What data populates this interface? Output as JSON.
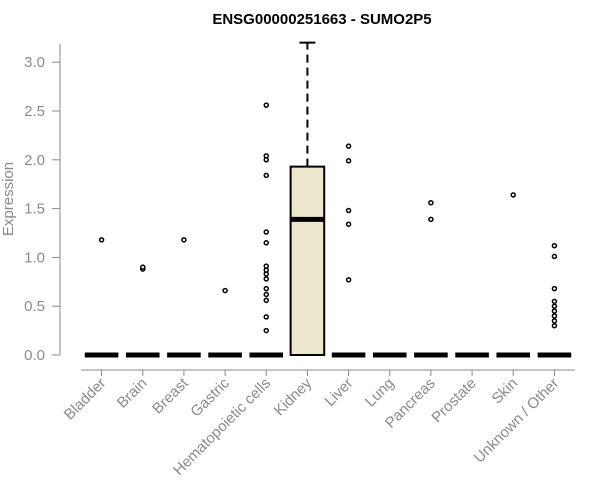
{
  "chart_data": {
    "type": "boxplot",
    "title": "ENSG00000251663 - SUMO2P5",
    "xlabel": "",
    "ylabel": "Expression",
    "ylim": [
      0,
      3.2
    ],
    "yticks": [
      0.0,
      0.5,
      1.0,
      1.5,
      2.0,
      2.5,
      3.0
    ],
    "ytick_labels": [
      "0.0",
      "0.5",
      "1.0",
      "1.5",
      "2.0",
      "2.5",
      "3.0"
    ],
    "categories": [
      "Bladder",
      "Brain",
      "Breast",
      "Gastric",
      "Hematopoietic cells",
      "Kidney",
      "Liver",
      "Lung",
      "Pancreas",
      "Prostate",
      "Skin",
      "Unknown / Other"
    ],
    "boxes": [
      {
        "category": "Bladder",
        "q1": 0,
        "median": 0,
        "q3": 0,
        "whisker_low": 0,
        "whisker_high": 0,
        "outliers": [
          1.18
        ]
      },
      {
        "category": "Brain",
        "q1": 0,
        "median": 0,
        "q3": 0,
        "whisker_low": 0,
        "whisker_high": 0,
        "outliers": [
          0.88,
          0.9
        ]
      },
      {
        "category": "Breast",
        "q1": 0,
        "median": 0,
        "q3": 0,
        "whisker_low": 0,
        "whisker_high": 0,
        "outliers": [
          1.18
        ]
      },
      {
        "category": "Gastric",
        "q1": 0,
        "median": 0,
        "q3": 0,
        "whisker_low": 0,
        "whisker_high": 0,
        "outliers": [
          0.66
        ]
      },
      {
        "category": "Hematopoietic cells",
        "q1": 0,
        "median": 0,
        "q3": 0,
        "whisker_low": 0,
        "whisker_high": 0,
        "outliers": [
          0.25,
          0.39,
          0.56,
          0.62,
          0.68,
          0.78,
          0.83,
          0.87,
          0.91,
          1.15,
          1.26,
          1.84,
          2.0,
          2.04,
          2.56
        ]
      },
      {
        "category": "Kidney",
        "q1": 0,
        "median": 1.39,
        "q3": 1.93,
        "whisker_low": 0,
        "whisker_high": 3.2,
        "outliers": []
      },
      {
        "category": "Liver",
        "q1": 0,
        "median": 0,
        "q3": 0,
        "whisker_low": 0,
        "whisker_high": 0,
        "outliers": [
          0.77,
          1.34,
          1.48,
          1.99,
          2.14
        ]
      },
      {
        "category": "Lung",
        "q1": 0,
        "median": 0,
        "q3": 0,
        "whisker_low": 0,
        "whisker_high": 0,
        "outliers": []
      },
      {
        "category": "Pancreas",
        "q1": 0,
        "median": 0,
        "q3": 0,
        "whisker_low": 0,
        "whisker_high": 0,
        "outliers": [
          1.39,
          1.56
        ]
      },
      {
        "category": "Prostate",
        "q1": 0,
        "median": 0,
        "q3": 0,
        "whisker_low": 0,
        "whisker_high": 0,
        "outliers": []
      },
      {
        "category": "Skin",
        "q1": 0,
        "median": 0,
        "q3": 0,
        "whisker_low": 0,
        "whisker_high": 0,
        "outliers": [
          1.64
        ]
      },
      {
        "category": "Unknown / Other",
        "q1": 0,
        "median": 0,
        "q3": 0,
        "whisker_low": 0,
        "whisker_high": 0,
        "outliers": [
          0.3,
          0.35,
          0.4,
          0.45,
          0.5,
          0.55,
          0.68,
          1.01,
          1.12
        ]
      }
    ],
    "box_fill_color": "#ede7cf",
    "box_line_color": "#000000",
    "axis_text_color": "#8a8a8a",
    "grid": false,
    "legend": "none"
  }
}
